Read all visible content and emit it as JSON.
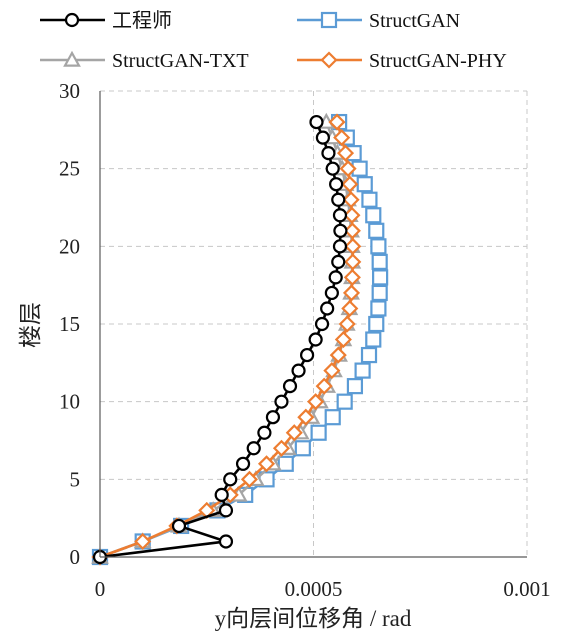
{
  "chart_data": {
    "type": "line",
    "title": "",
    "xlabel": "y向层间位移角 / rad",
    "ylabel": "楼层",
    "xlim": [
      0,
      0.001
    ],
    "ylim": [
      0,
      30
    ],
    "xticks": [
      0,
      0.0005,
      0.001
    ],
    "xtick_labels": [
      "0",
      "0.0005",
      "0.001"
    ],
    "yticks": [
      0,
      5,
      10,
      15,
      20,
      25,
      30
    ],
    "ytick_labels": [
      "0",
      "5",
      "10",
      "15",
      "20",
      "25",
      "30"
    ],
    "grid": "vertical and horizontal dashed",
    "legend_position": "top, two columns",
    "series": [
      {
        "name": "工程师",
        "color": "#000000",
        "marker": "circle",
        "x": [
          0,
          0.000295,
          0.000185,
          0.000295,
          0.000285,
          0.000305,
          0.000335,
          0.00036,
          0.000385,
          0.000405,
          0.000425,
          0.000445,
          0.000465,
          0.000485,
          0.000505,
          0.00052,
          0.000532,
          0.000543,
          0.000552,
          0.000558,
          0.000562,
          0.000563,
          0.000562,
          0.000558,
          0.000553,
          0.000545,
          0.000535,
          0.000522,
          0.000507
        ],
        "y": [
          0,
          1,
          2,
          3,
          4,
          5,
          6,
          7,
          8,
          9,
          10,
          11,
          12,
          13,
          14,
          15,
          16,
          17,
          18,
          19,
          20,
          21,
          22,
          23,
          24,
          25,
          26,
          27,
          28
        ]
      },
      {
        "name": "StructGAN",
        "color": "#5b9bd5",
        "marker": "square",
        "x": [
          0,
          0.0001,
          0.00019,
          0.000275,
          0.00034,
          0.00039,
          0.000435,
          0.000475,
          0.000512,
          0.000545,
          0.000573,
          0.000597,
          0.000615,
          0.00063,
          0.00064,
          0.000647,
          0.000652,
          0.000655,
          0.000656,
          0.000655,
          0.000652,
          0.000647,
          0.00064,
          0.000631,
          0.00062,
          0.000608,
          0.000594,
          0.000578,
          0.00056
        ],
        "y": [
          0,
          1,
          2,
          3,
          4,
          5,
          6,
          7,
          8,
          9,
          10,
          11,
          12,
          13,
          14,
          15,
          16,
          17,
          18,
          19,
          20,
          21,
          22,
          23,
          24,
          25,
          26,
          27,
          28
        ]
      },
      {
        "name": "StructGAN-TXT",
        "color": "#a5a5a5",
        "marker": "triangle",
        "x": [
          0,
          0.0001,
          0.000185,
          0.000265,
          0.000325,
          0.000365,
          0.000405,
          0.00044,
          0.00047,
          0.000495,
          0.000515,
          0.000532,
          0.000548,
          0.00056,
          0.00057,
          0.000578,
          0.000584,
          0.000588,
          0.00059,
          0.000591,
          0.00059,
          0.000588,
          0.000585,
          0.000581,
          0.000575,
          0.000567,
          0.000556,
          0.000544,
          0.00053
        ],
        "y": [
          0,
          1,
          2,
          3,
          4,
          5,
          6,
          7,
          8,
          9,
          10,
          11,
          12,
          13,
          14,
          15,
          16,
          17,
          18,
          19,
          20,
          21,
          22,
          23,
          24,
          25,
          26,
          27,
          28
        ]
      },
      {
        "name": "StructGAN-PHY",
        "color": "#ed7d31",
        "marker": "diamond",
        "x": [
          0,
          0.0001,
          0.00018,
          0.00025,
          0.000305,
          0.00035,
          0.00039,
          0.000425,
          0.000455,
          0.000482,
          0.000505,
          0.000525,
          0.000543,
          0.000558,
          0.00057,
          0.000579,
          0.000585,
          0.000589,
          0.000591,
          0.000592,
          0.000592,
          0.000591,
          0.00059,
          0.000588,
          0.000585,
          0.000581,
          0.000575,
          0.000566,
          0.000555
        ],
        "y": [
          0,
          1,
          2,
          3,
          4,
          5,
          6,
          7,
          8,
          9,
          10,
          11,
          12,
          13,
          14,
          15,
          16,
          17,
          18,
          19,
          20,
          21,
          22,
          23,
          24,
          25,
          26,
          27,
          28
        ]
      }
    ]
  }
}
